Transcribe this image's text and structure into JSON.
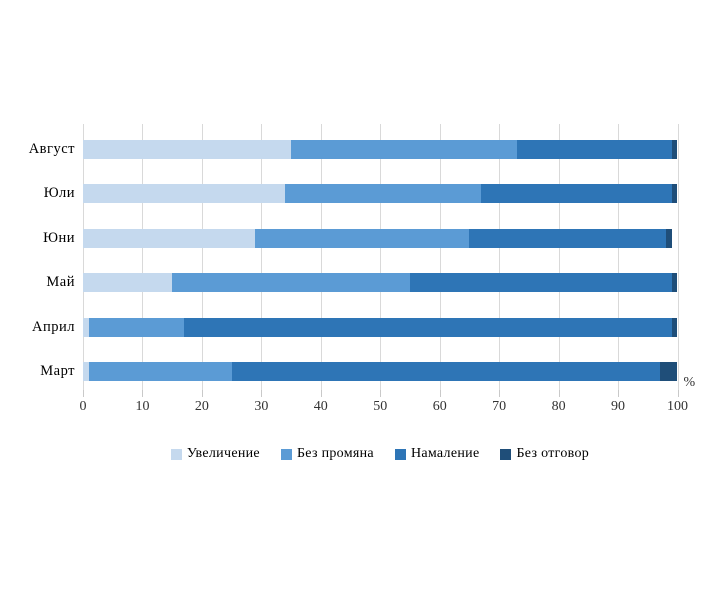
{
  "chart_data": {
    "type": "bar",
    "orientation": "horizontal",
    "stacked": true,
    "title": "",
    "xlabel": "%",
    "ylabel": "",
    "xlim": [
      0,
      100
    ],
    "x_ticks": [
      0,
      10,
      20,
      30,
      40,
      50,
      60,
      70,
      80,
      90,
      100
    ],
    "grid": "vertical",
    "legend_position": "bottom",
    "categories": [
      "Август",
      "Юли",
      "Юни",
      "Май",
      "Април",
      "Март"
    ],
    "series": [
      {
        "name": "Увеличение",
        "color": "#c5d9ee",
        "values": [
          35,
          34,
          29,
          15,
          1,
          1
        ]
      },
      {
        "name": "Без промяна",
        "color": "#5b9bd5",
        "values": [
          38,
          33,
          36,
          40,
          16,
          24
        ]
      },
      {
        "name": "Намаление",
        "color": "#2e75b6",
        "values": [
          26,
          32,
          33,
          44,
          82,
          72
        ]
      },
      {
        "name": "Без отговор",
        "color": "#1f4e79",
        "values": [
          1,
          1,
          1,
          1,
          1,
          3
        ]
      }
    ],
    "colors": {
      "gridline": "#d9d9d9",
      "tick": "#c9c9c9",
      "axis_text": "#333333",
      "label_text": "#000000"
    }
  }
}
